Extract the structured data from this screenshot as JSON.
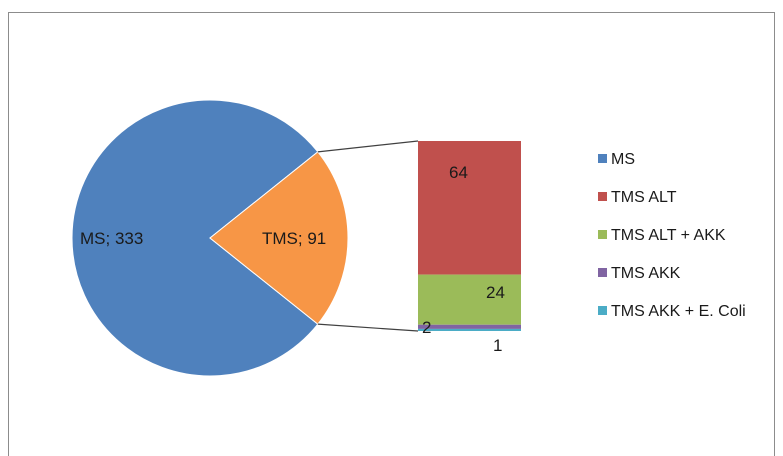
{
  "chart_data": {
    "type": "pie",
    "subtype": "bar-of-pie",
    "pie": {
      "slices": [
        {
          "name": "MS",
          "value": 333,
          "label": "MS; 333",
          "color": "#4f81bd"
        },
        {
          "name": "TMS",
          "value": 91,
          "label": "TMS; 91",
          "color": "#f79646"
        }
      ]
    },
    "bar": {
      "parent": "TMS",
      "segments": [
        {
          "name": "TMS ALT",
          "value": 64,
          "label": "64",
          "color": "#c0504d"
        },
        {
          "name": "TMS ALT + AKK",
          "value": 24,
          "label": "24",
          "color": "#9bbb59"
        },
        {
          "name": "TMS AKK",
          "value": 2,
          "label": "2",
          "color": "#8064a2"
        },
        {
          "name": "TMS AKK + E. Coli",
          "value": 1,
          "label": "1",
          "color": "#4bacc6"
        }
      ]
    },
    "legend": {
      "position": "right",
      "entries": [
        {
          "name": "MS",
          "color": "#4f81bd"
        },
        {
          "name": "TMS ALT",
          "color": "#c0504d"
        },
        {
          "name": "TMS ALT + AKK",
          "color": "#9bbb59"
        },
        {
          "name": "TMS AKK",
          "color": "#8064a2"
        },
        {
          "name": "TMS AKK + E. Coli",
          "color": "#4bacc6"
        }
      ]
    },
    "title": ""
  }
}
